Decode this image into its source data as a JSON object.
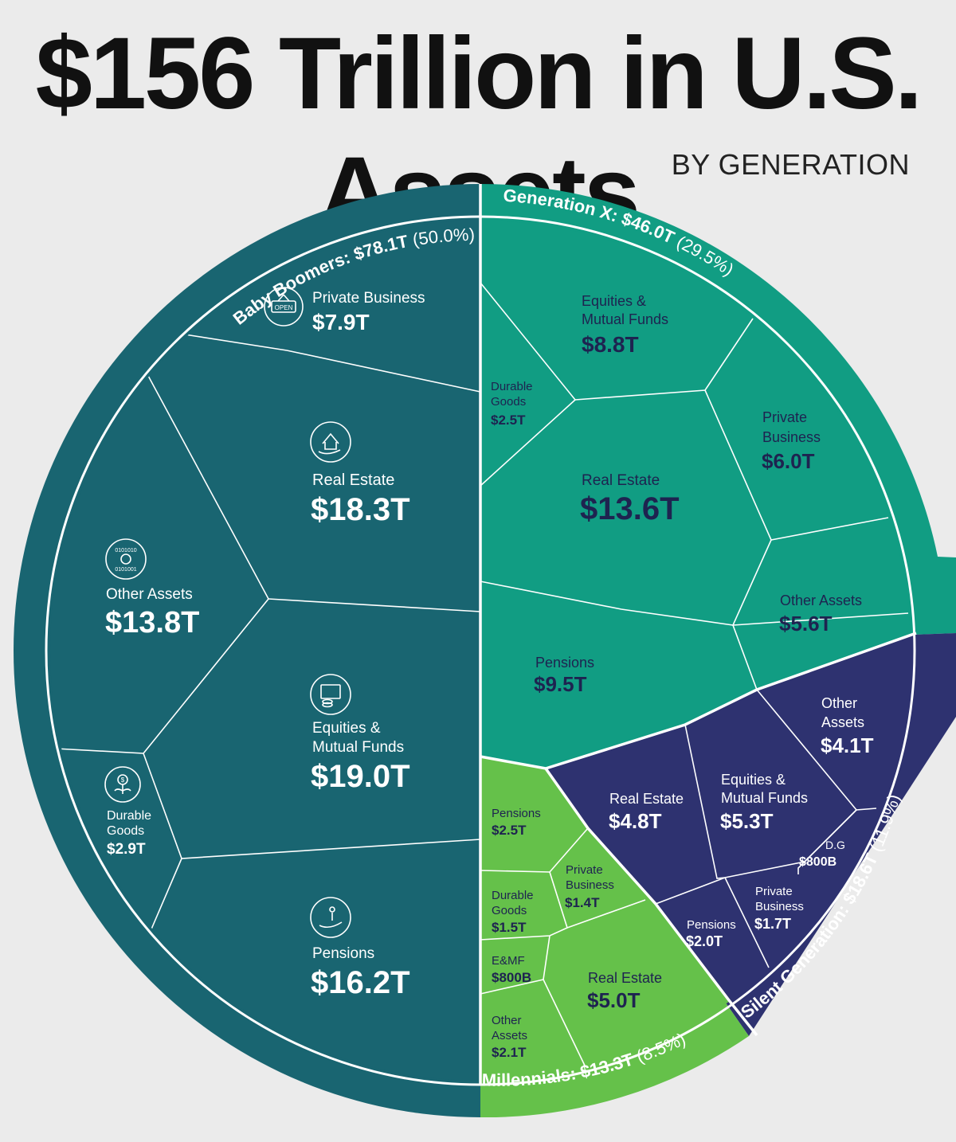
{
  "title": "$156 Trillion in U.S. Assets",
  "subtitle": "BY GENERATION",
  "colors": {
    "baby_boomers": "#196571",
    "generation_x": "#119d83",
    "silent_generation": "#2e3270",
    "millennials": "#65c14a",
    "background": "#ebebeb",
    "dark_label": "#1e2350"
  },
  "icons": {
    "private_business": "open-sign-icon",
    "real_estate": "house-in-hand-icon",
    "other_assets": "coins-binary-icon",
    "equities": "certificate-coins-icon",
    "durable_goods": "plant-dollar-icon",
    "pensions": "person-in-hand-icon"
  },
  "ring_labels": {
    "baby_boomers": {
      "name": "Baby Boomers: $78.1T",
      "pct": "(50.0%)"
    },
    "generation_x": {
      "name": "Generation X: $46.0T",
      "pct": "(29.5%)"
    },
    "silent_generation": {
      "name": "Silent Generation: $18.6T",
      "pct": "(11.9%)"
    },
    "millennials": {
      "name": "Millennials: $13.3T",
      "pct": "(8.5%)"
    }
  },
  "chart_data": {
    "type": "voronoi-treemap",
    "title": "$156 Trillion in U.S. Assets",
    "subtitle": "BY GENERATION",
    "total_trillions": 156,
    "series": [
      {
        "name": "Baby Boomers",
        "total": 78.1,
        "share_pct": 50.0,
        "assets": [
          {
            "label": "Private Business",
            "value": 7.9,
            "value_label": "$7.9T"
          },
          {
            "label": "Real Estate",
            "value": 18.3,
            "value_label": "$18.3T"
          },
          {
            "label": "Other Assets",
            "value": 13.8,
            "value_label": "$13.8T"
          },
          {
            "label": "Equities & Mutual Funds",
            "value": 19.0,
            "value_label": "$19.0T"
          },
          {
            "label": "Durable Goods",
            "value": 2.9,
            "value_label": "$2.9T"
          },
          {
            "label": "Pensions",
            "value": 16.2,
            "value_label": "$16.2T"
          }
        ]
      },
      {
        "name": "Generation X",
        "total": 46.0,
        "share_pct": 29.5,
        "assets": [
          {
            "label": "Equities & Mutual Funds",
            "value": 8.8,
            "value_label": "$8.8T"
          },
          {
            "label": "Durable Goods",
            "value": 2.5,
            "value_label": "$2.5T"
          },
          {
            "label": "Private Business",
            "value": 6.0,
            "value_label": "$6.0T"
          },
          {
            "label": "Real Estate",
            "value": 13.6,
            "value_label": "$13.6T"
          },
          {
            "label": "Other Assets",
            "value": 5.6,
            "value_label": "$5.6T"
          },
          {
            "label": "Pensions",
            "value": 9.5,
            "value_label": "$9.5T"
          }
        ]
      },
      {
        "name": "Silent Generation",
        "total": 18.6,
        "share_pct": 11.9,
        "assets": [
          {
            "label": "Other Assets",
            "value": 4.1,
            "value_label": "$4.1T"
          },
          {
            "label": "Real Estate",
            "value": 4.8,
            "value_label": "$4.8T"
          },
          {
            "label": "Equities & Mutual Funds",
            "value": 5.3,
            "value_label": "$5.3T"
          },
          {
            "label": "D.G",
            "value": 0.8,
            "value_label": "$800B"
          },
          {
            "label": "Private Business",
            "value": 1.7,
            "value_label": "$1.7T"
          },
          {
            "label": "Pensions",
            "value": 2.0,
            "value_label": "$2.0T"
          }
        ]
      },
      {
        "name": "Millennials",
        "total": 13.3,
        "share_pct": 8.5,
        "assets": [
          {
            "label": "Pensions",
            "value": 2.5,
            "value_label": "$2.5T"
          },
          {
            "label": "Private Business",
            "value": 1.4,
            "value_label": "$1.4T"
          },
          {
            "label": "Durable Goods",
            "value": 1.5,
            "value_label": "$1.5T"
          },
          {
            "label": "E&MF",
            "value": 0.8,
            "value_label": "$800B"
          },
          {
            "label": "Real Estate",
            "value": 5.0,
            "value_label": "$5.0T"
          },
          {
            "label": "Other Assets",
            "value": 2.1,
            "value_label": "$2.1T"
          }
        ]
      }
    ]
  }
}
